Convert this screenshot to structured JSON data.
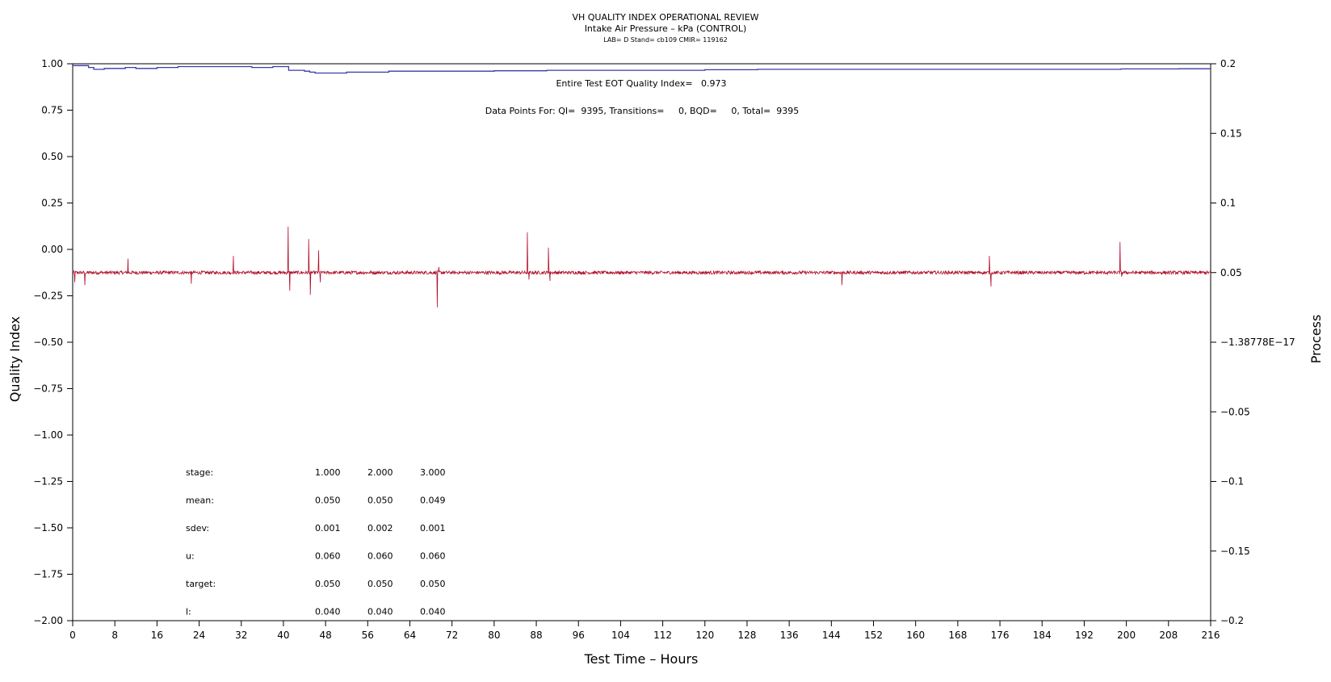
{
  "chart_data": {
    "type": "line",
    "title": "VH QUALITY INDEX OPERATIONAL REVIEW",
    "subtitle": "Intake Air Pressure – kPa (CONTROL)",
    "subtitle2": "LAB= D Stand= cb109 CMIR= 119162",
    "xlabel": "Test Time – Hours",
    "ylabel": "Quality Index",
    "y2label": "Process",
    "xlim": [
      0,
      216
    ],
    "ylim": [
      -2.0,
      1.0
    ],
    "y2lim": [
      -0.2,
      0.2
    ],
    "x_ticks": [
      0,
      8,
      16,
      24,
      32,
      40,
      48,
      56,
      64,
      72,
      80,
      88,
      96,
      104,
      112,
      120,
      128,
      136,
      144,
      152,
      160,
      168,
      176,
      184,
      192,
      200,
      208,
      216
    ],
    "x_tick_labels": [
      "0",
      "8",
      "16",
      "24",
      "32",
      "40",
      "48",
      "56",
      "64",
      "72",
      "80",
      "88",
      "96",
      "104",
      "112",
      "120",
      "128",
      "136",
      "144",
      "152",
      "160",
      "168",
      "176",
      "184",
      "192",
      "200",
      "208",
      "216"
    ],
    "y_ticks": [
      1.0,
      0.75,
      0.5,
      0.25,
      0.0,
      -0.25,
      -0.5,
      -0.75,
      -1.0,
      -1.25,
      -1.5,
      -1.75,
      -2.0
    ],
    "y_tick_labels": [
      "1.00",
      "0.75",
      "0.50",
      "0.25",
      "0.00",
      "−0.25",
      "−0.50",
      "−0.75",
      "−1.00",
      "−1.25",
      "−1.50",
      "−1.75",
      "−2.00"
    ],
    "y2_ticks": [
      0.2,
      0.15,
      0.1,
      0.05,
      0.0,
      -0.05,
      -0.1,
      -0.15,
      -0.2
    ],
    "y2_tick_labels": [
      "0.2",
      "0.15",
      "0.1",
      "0.05",
      "−1.38778E−17",
      "−0.05",
      "−0.1",
      "−0.15",
      "−0.2"
    ],
    "grid": false,
    "colors": {
      "quality_index": "#3a3aa8",
      "process": "#b0102a"
    },
    "annotations": {
      "eot": "Entire Test EOT Quality Index=   0.973",
      "points": "Data Points For: QI=  9395, Transitions=     0, BQD=     0, Total=  9395"
    },
    "stats_table": {
      "rows": [
        {
          "label": "stage:",
          "values": [
            "1.000",
            "2.000",
            "3.000"
          ]
        },
        {
          "label": "mean:",
          "values": [
            "0.050",
            "0.050",
            "0.049"
          ]
        },
        {
          "label": "sdev:",
          "values": [
            "0.001",
            "0.002",
            "0.001"
          ]
        },
        {
          "label": "u:",
          "values": [
            "0.060",
            "0.060",
            "0.060"
          ]
        },
        {
          "label": "target:",
          "values": [
            "0.050",
            "0.050",
            "0.050"
          ]
        },
        {
          "label": "l:",
          "values": [
            "0.040",
            "0.040",
            "0.040"
          ]
        }
      ]
    },
    "series": [
      {
        "name": "",
        "axis": "left",
        "style": "step",
        "x": [
          0,
          2,
          3,
          4,
          6,
          8,
          10,
          12,
          14,
          16,
          20,
          30,
          34,
          38,
          40,
          41,
          44,
          45,
          46,
          50,
          52,
          56,
          60,
          70,
          80,
          90,
          100,
          120,
          130,
          140,
          160,
          180,
          198,
          199,
          200,
          208,
          210,
          216
        ],
        "values": [
          0.99,
          0.99,
          0.98,
          0.97,
          0.975,
          0.975,
          0.98,
          0.975,
          0.975,
          0.98,
          0.985,
          0.985,
          0.98,
          0.985,
          0.985,
          0.965,
          0.96,
          0.955,
          0.95,
          0.95,
          0.955,
          0.955,
          0.96,
          0.96,
          0.962,
          0.965,
          0.965,
          0.968,
          0.97,
          0.97,
          0.97,
          0.97,
          0.97,
          0.972,
          0.972,
          0.972,
          0.973,
          0.973
        ]
      },
      {
        "name": "",
        "axis": "right",
        "style": "noisy",
        "baseline": 0.05,
        "noise": 0.0012,
        "x_start": 0,
        "x_end": 216,
        "spikes": [
          {
            "x": 0.4,
            "value": 0.043
          },
          {
            "x": 2.3,
            "value": 0.041
          },
          {
            "x": 10.5,
            "value": 0.06
          },
          {
            "x": 22.5,
            "value": 0.042
          },
          {
            "x": 30.5,
            "value": 0.062
          },
          {
            "x": 40.9,
            "value": 0.083
          },
          {
            "x": 41.2,
            "value": 0.037
          },
          {
            "x": 44.8,
            "value": 0.074
          },
          {
            "x": 45.1,
            "value": 0.034
          },
          {
            "x": 46.7,
            "value": 0.066
          },
          {
            "x": 47.0,
            "value": 0.043
          },
          {
            "x": 69.2,
            "value": 0.025
          },
          {
            "x": 69.5,
            "value": 0.054
          },
          {
            "x": 86.3,
            "value": 0.079
          },
          {
            "x": 86.6,
            "value": 0.045
          },
          {
            "x": 90.3,
            "value": 0.068
          },
          {
            "x": 90.6,
            "value": 0.044
          },
          {
            "x": 146.0,
            "value": 0.041
          },
          {
            "x": 174.0,
            "value": 0.062
          },
          {
            "x": 174.3,
            "value": 0.04
          },
          {
            "x": 198.8,
            "value": 0.072
          },
          {
            "x": 199.1,
            "value": 0.047
          }
        ]
      }
    ]
  }
}
